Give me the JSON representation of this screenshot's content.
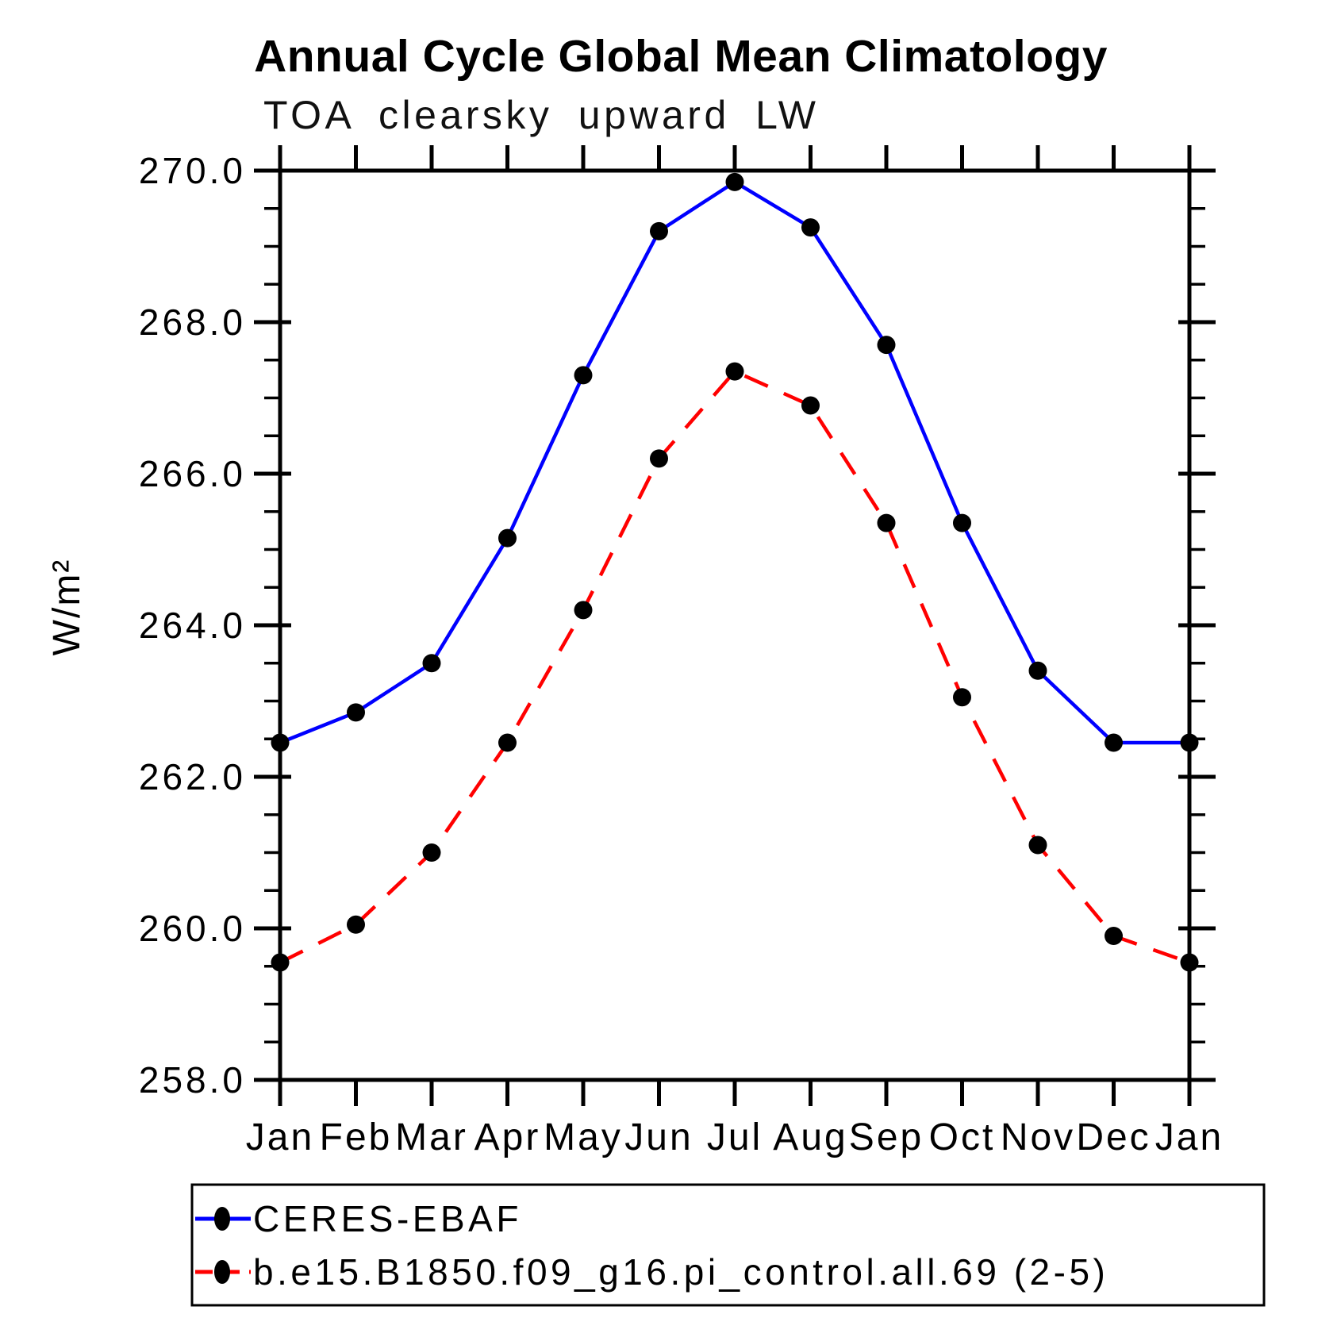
{
  "title": "Annual Cycle Global Mean Climatology",
  "subtitle": "TOA clearsky upward LW",
  "chart_data": {
    "type": "line",
    "title": "Annual Cycle Global Mean Climatology",
    "subtitle": "TOA clearsky upward LW",
    "xlabel": "",
    "ylabel": "W/m²",
    "x_categories": [
      "Jan",
      "Feb",
      "Mar",
      "Apr",
      "May",
      "Jun",
      "Jul",
      "Aug",
      "Sep",
      "Oct",
      "Nov",
      "Dec",
      "Jan"
    ],
    "ylim": [
      258.0,
      270.0
    ],
    "y_major_interval": 2.0,
    "y_minor_interval": 0.5,
    "ytick_labels": [
      "258.0",
      "260.0",
      "262.0",
      "264.0",
      "266.0",
      "268.0",
      "270.0"
    ],
    "grid": false,
    "legend_position": "bottom-left",
    "axis_color": "#000000",
    "marker_color": "#000000",
    "series": [
      {
        "name": "CERES-EBAF",
        "color": "#0000ff",
        "line_style": "solid",
        "marker": "filled-circle",
        "values": [
          262.45,
          262.85,
          263.5,
          265.15,
          267.3,
          269.2,
          269.85,
          269.25,
          267.7,
          265.35,
          263.4,
          262.45,
          262.45
        ]
      },
      {
        "name": "b.e15.B1850.f09_g16.pi_control.all.69 (2-5)",
        "color": "#ff0000",
        "line_style": "dashed",
        "marker": "filled-circle",
        "values": [
          259.55,
          260.05,
          261.0,
          262.45,
          264.2,
          266.2,
          267.35,
          266.9,
          265.35,
          263.05,
          261.1,
          259.9,
          259.55
        ]
      }
    ]
  }
}
